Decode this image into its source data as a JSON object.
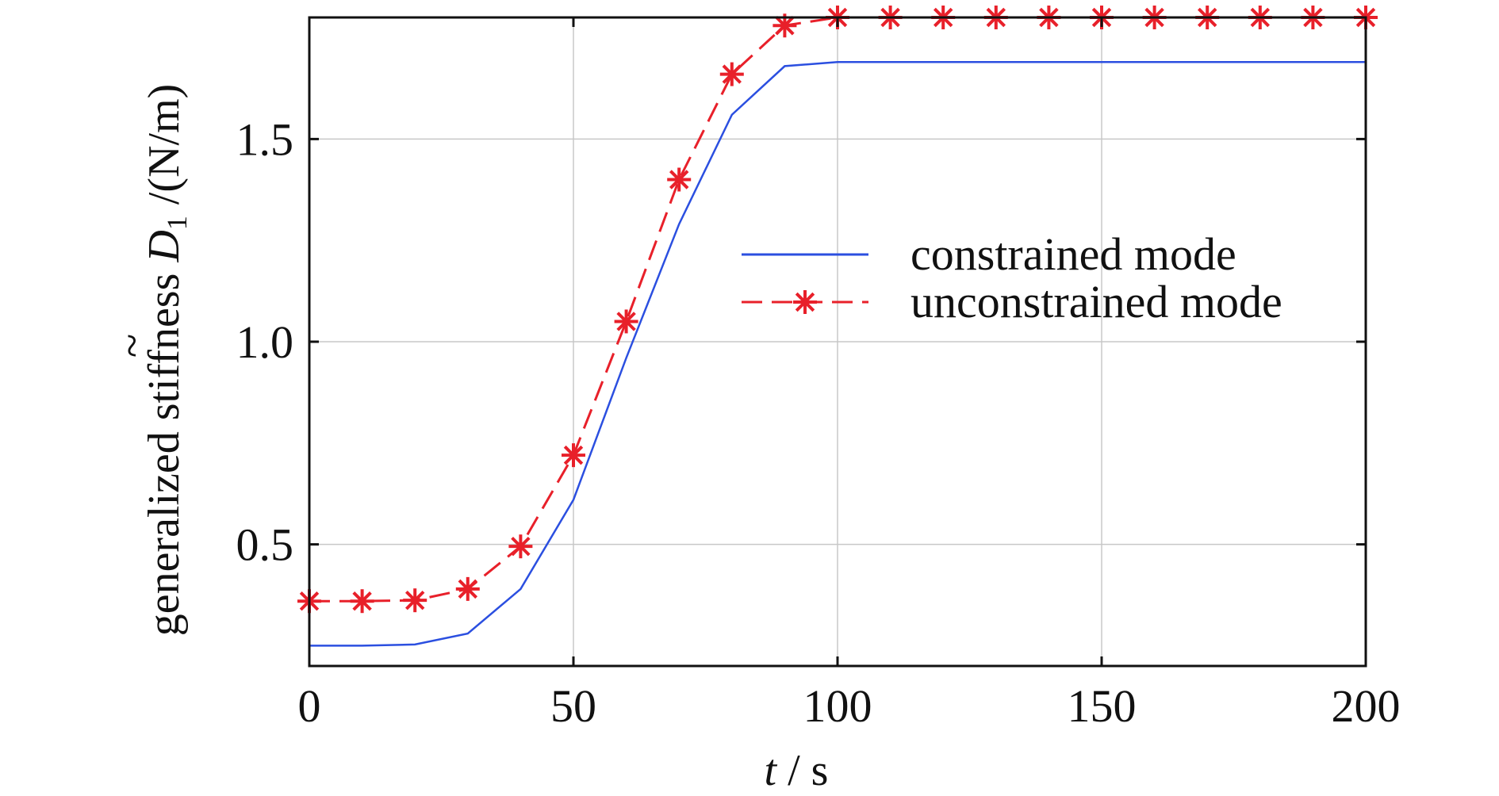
{
  "chart_data": {
    "type": "line",
    "title": "",
    "xlabel": {
      "var": "t",
      "sep": " / ",
      "unit": "s"
    },
    "ylabel": {
      "prefix": "generalized stiffness ",
      "tilde": "~",
      "var": "D",
      "sub": "1",
      "suffix": " /(N/m)"
    },
    "xlim": [
      0,
      200
    ],
    "ylim": [
      0.2,
      1.8
    ],
    "xticks": [
      0,
      50,
      100,
      150,
      200
    ],
    "xtick_labels": [
      "0",
      "50",
      "100",
      "150",
      "200"
    ],
    "yticks": [
      0.5,
      1.0,
      1.5
    ],
    "ytick_labels": [
      "0.5",
      "1.0",
      "1.5"
    ],
    "grid": true,
    "legend_position": "center-right",
    "x": [
      0,
      10,
      20,
      30,
      40,
      50,
      60,
      70,
      80,
      90,
      100,
      110,
      120,
      130,
      140,
      150,
      160,
      170,
      180,
      190,
      200
    ],
    "series": [
      {
        "name": "constrained mode",
        "color": "#2b4fe0",
        "style": "solid",
        "marker": "none",
        "values": [
          0.25,
          0.25,
          0.253,
          0.28,
          0.39,
          0.61,
          0.96,
          1.29,
          1.56,
          1.68,
          1.69,
          1.69,
          1.69,
          1.69,
          1.69,
          1.69,
          1.69,
          1.69,
          1.69,
          1.69,
          1.69
        ]
      },
      {
        "name": "unconstrained mode",
        "color": "#e8202a",
        "style": "dashed",
        "marker": "asterisk",
        "values": [
          0.36,
          0.36,
          0.362,
          0.39,
          0.495,
          0.72,
          1.05,
          1.4,
          1.66,
          1.78,
          1.8,
          1.8,
          1.8,
          1.8,
          1.8,
          1.8,
          1.8,
          1.8,
          1.8,
          1.8,
          1.8
        ]
      }
    ]
  }
}
